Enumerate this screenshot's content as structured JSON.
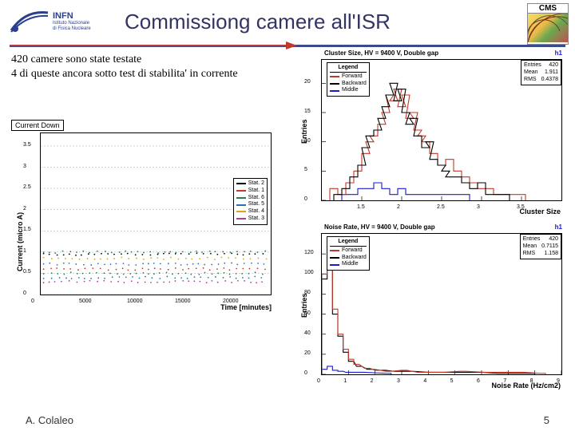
{
  "header": {
    "title": "Commissiong camere all'ISR",
    "logo_infn_main": "INFN",
    "logo_infn_sub1": "Istituto Nazionale",
    "logo_infn_sub2": "di Fisica Nucleare",
    "cms_label": "CMS"
  },
  "bodytext": {
    "line1": "420 camere sono state testate",
    "line2": "4 di queste ancora sotto test di stabilita' in corrente"
  },
  "chart_current": {
    "type": "scatter",
    "title": "Current Down",
    "ylabel": "Current (micro A)",
    "xlabel": "Time [minutes]",
    "ylim": [
      0,
      3.8
    ],
    "yticks": [
      0,
      0.5,
      1,
      1.5,
      2,
      2.5,
      3,
      3.5
    ],
    "ytick_labels": [
      "0",
      "0.5",
      "1",
      "1.5",
      "2",
      "2.5",
      "3",
      "3.5"
    ],
    "xlim": [
      0,
      24000
    ],
    "xticks": [
      0,
      5000,
      10000,
      15000,
      20000
    ],
    "xtick_labels": [
      "0",
      "5000",
      "10000",
      "15000",
      "20000"
    ],
    "grid_color": "#bbbbbb",
    "background_color": "#ffffff",
    "legend_items": [
      {
        "label": "Stat. 2",
        "color": "#000000"
      },
      {
        "label": "Stat. 1",
        "color": "#c0392b"
      },
      {
        "label": "Stat. 6",
        "color": "#1e8449"
      },
      {
        "label": "Stat. 5",
        "color": "#2874a6"
      },
      {
        "label": "Stat. 4",
        "color": "#d4ac0d"
      },
      {
        "label": "Stat. 3",
        "color": "#b03a9e"
      }
    ],
    "bands": [
      {
        "y": 0.3,
        "color": "#b03a9e"
      },
      {
        "y": 0.4,
        "color": "#2874a6"
      },
      {
        "y": 0.5,
        "color": "#1e8449"
      },
      {
        "y": 0.6,
        "color": "#c0392b"
      },
      {
        "y": 0.72,
        "color": "#2874a6"
      },
      {
        "y": 0.85,
        "color": "#d4ac0d"
      },
      {
        "y": 0.95,
        "color": "#000000"
      },
      {
        "y": 1.0,
        "color": "#1e8449"
      }
    ]
  },
  "chart_cluster": {
    "type": "histogram",
    "title": "Cluster Size, HV = 9400 V, Double gap",
    "ylabel": "Entries",
    "xlabel": "Cluster Size",
    "xlim": [
      1.0,
      4.0
    ],
    "xticks": [
      1.5,
      2,
      2.5,
      3,
      3.5
    ],
    "xtick_labels": [
      "1.5",
      "2",
      "2.5",
      "3",
      "3.5"
    ],
    "ylim": [
      0,
      24
    ],
    "yticks": [
      0,
      5,
      10,
      15,
      20
    ],
    "ytick_labels": [
      "0",
      "5",
      "10",
      "15",
      "20"
    ],
    "h1_label": "h1",
    "stats": {
      "Entries": "420",
      "Mean": "1.911",
      "RMS": "0.4378"
    },
    "legend_title": "Legend",
    "legend_items": [
      {
        "label": "Forward",
        "color": "#c0392b"
      },
      {
        "label": "Backward",
        "color": "#000000"
      },
      {
        "label": "Middle",
        "color": "#1a1acc"
      }
    ],
    "series": {
      "red": {
        "color": "#c0392b",
        "x": [
          1.15,
          1.25,
          1.35,
          1.45,
          1.55,
          1.6,
          1.65,
          1.75,
          1.8,
          1.85,
          1.9,
          1.95,
          2.0,
          2.05,
          2.1,
          2.15,
          2.2,
          2.25,
          2.3,
          2.4,
          2.5,
          2.6,
          2.7,
          2.8,
          2.9,
          3.0,
          3.1,
          3.2,
          3.3,
          3.5
        ],
        "y": [
          2,
          1,
          3,
          5,
          8,
          10,
          11,
          13,
          15,
          18,
          17,
          19,
          16,
          18,
          14,
          15,
          12,
          11,
          10,
          8,
          6,
          7,
          5,
          4,
          3,
          2,
          2,
          1,
          1,
          1
        ]
      },
      "black": {
        "color": "#000000",
        "x": [
          1.2,
          1.3,
          1.4,
          1.5,
          1.55,
          1.6,
          1.7,
          1.75,
          1.8,
          1.85,
          1.9,
          1.95,
          2.0,
          2.05,
          2.1,
          2.15,
          2.2,
          2.3,
          2.35,
          2.4,
          2.5,
          2.55,
          2.6,
          2.7,
          2.8,
          2.9,
          3.0,
          3.1,
          3.3
        ],
        "y": [
          1,
          2,
          4,
          6,
          9,
          11,
          12,
          14,
          16,
          18,
          20,
          17,
          19,
          15,
          13,
          14,
          11,
          9,
          10,
          7,
          6,
          5,
          4,
          4,
          3,
          2,
          3,
          1,
          1
        ]
      },
      "blue": {
        "color": "#1a1acc",
        "x": [
          1.3,
          1.4,
          1.5,
          1.6,
          1.7,
          1.8,
          1.9,
          2.0,
          2.1,
          2.5,
          2.8
        ],
        "y": [
          1,
          1,
          2,
          2,
          3,
          2,
          1,
          2,
          1,
          1,
          1
        ]
      }
    }
  },
  "chart_noise": {
    "type": "histogram",
    "title": "Noise Rate, HV = 9400 V, Double gap",
    "ylabel": "Entries",
    "xlabel": "Noise Rate (Hz/cm2)",
    "xlim": [
      0,
      9
    ],
    "xticks": [
      0,
      1,
      2,
      3,
      4,
      5,
      6,
      7,
      8,
      9
    ],
    "xtick_labels": [
      "0",
      "1",
      "2",
      "3",
      "4",
      "5",
      "6",
      "7",
      "8",
      "9"
    ],
    "ylim": [
      0,
      140
    ],
    "yticks": [
      0,
      20,
      40,
      60,
      80,
      100,
      120
    ],
    "ytick_labels": [
      "0",
      "20",
      "40",
      "60",
      "80",
      "100",
      "120"
    ],
    "h1_label": "h1",
    "stats": {
      "Entries": "420",
      "Mean": "0.7115",
      "RMS": "1.158"
    },
    "legend_title": "Legend",
    "legend_items": [
      {
        "label": "Forward",
        "color": "#c0392b"
      },
      {
        "label": "Backward",
        "color": "#000000"
      },
      {
        "label": "Middle",
        "color": "#1a1acc"
      }
    ],
    "series": {
      "red": {
        "color": "#c0392b",
        "x": [
          0.1,
          0.3,
          0.5,
          0.7,
          0.9,
          1.1,
          1.3,
          1.7,
          2.1,
          2.5,
          3.1,
          3.7,
          4.5,
          5.3,
          6.2,
          7.5,
          8.3
        ],
        "y": [
          100,
          128,
          65,
          40,
          25,
          15,
          10,
          6,
          4,
          3,
          4,
          2,
          2,
          3,
          2,
          2,
          1
        ]
      },
      "black": {
        "color": "#000000",
        "x": [
          0.1,
          0.3,
          0.5,
          0.7,
          0.9,
          1.1,
          1.4,
          1.8,
          2.3,
          2.8,
          3.3,
          4.1,
          4.9,
          5.9,
          6.7,
          7.9
        ],
        "y": [
          95,
          110,
          60,
          38,
          22,
          13,
          8,
          5,
          4,
          3,
          3,
          2,
          2,
          2,
          1,
          1
        ]
      },
      "blue": {
        "color": "#1a1acc",
        "x": [
          0.1,
          0.3,
          0.5,
          0.7,
          1.0,
          1.5,
          2.5
        ],
        "y": [
          5,
          8,
          4,
          3,
          2,
          2,
          1
        ]
      }
    }
  },
  "footer": {
    "author": "A. Colaleo",
    "page": "5"
  }
}
